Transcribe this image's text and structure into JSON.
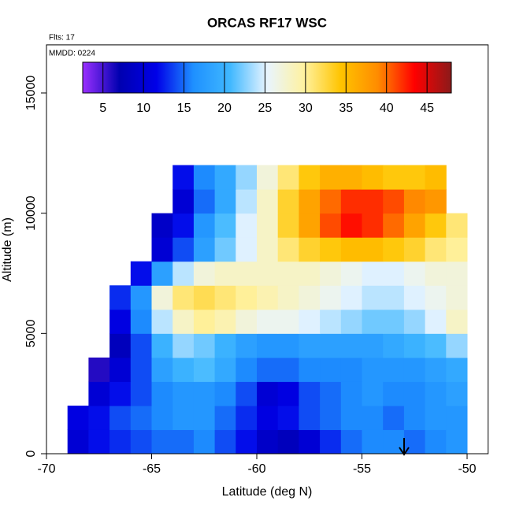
{
  "chart_data": {
    "type": "heatmap",
    "title": "ORCAS RF17 WSC",
    "subtitle": "Flts: 17",
    "annotation": "MMDD: 0224",
    "xlabel": "Latitude (deg N)",
    "ylabel": "Altitude (m)",
    "xlim": [
      -70,
      -49
    ],
    "ylim": [
      0,
      17000
    ],
    "xticks": [
      -70,
      -65,
      -60,
      -55,
      -50
    ],
    "yticks": [
      0,
      5000,
      10000,
      15000
    ],
    "x": [
      -68.5,
      -67.5,
      -66.5,
      -65.5,
      -64.5,
      -63.5,
      -62.5,
      -61.5,
      -60.5,
      -59.5,
      -58.5,
      -57.5,
      -56.5,
      -55.5,
      -54.5,
      -53.5,
      -52.5,
      -51.5,
      -50.5
    ],
    "y": [
      500,
      1500,
      2500,
      3500,
      4500,
      5500,
      6500,
      7500,
      8500,
      9500,
      10500,
      11500
    ],
    "z": [
      [
        10,
        12,
        13,
        14,
        15,
        15,
        16,
        14,
        12,
        9,
        8,
        10,
        13,
        15,
        16,
        16,
        15,
        16,
        17
      ],
      [
        11,
        12,
        14,
        15,
        16,
        17,
        17,
        15,
        13,
        11,
        12,
        14,
        15,
        16,
        16,
        15,
        16,
        17,
        17
      ],
      [
        null,
        10,
        12,
        14,
        16,
        17,
        17,
        16,
        14,
        10,
        11,
        14,
        15,
        16,
        17,
        16,
        16,
        17,
        18
      ],
      [
        null,
        6,
        10,
        14,
        18,
        20,
        21,
        19,
        16,
        15,
        15,
        16,
        16,
        16,
        17,
        17,
        17,
        18,
        19
      ],
      [
        null,
        null,
        8,
        14,
        20,
        23,
        22,
        20,
        18,
        17,
        17,
        18,
        18,
        18,
        18,
        19,
        20,
        21,
        23
      ],
      [
        null,
        null,
        11,
        16,
        24,
        28,
        30,
        29,
        27,
        26,
        26,
        25,
        24,
        23,
        22,
        22,
        23,
        25,
        28
      ],
      [
        null,
        null,
        13,
        17,
        27,
        31,
        32,
        31,
        30,
        29,
        28,
        27,
        26,
        25,
        24,
        24,
        25,
        26,
        27
      ],
      [
        null,
        null,
        null,
        12,
        18,
        24,
        27,
        28,
        28,
        28,
        28,
        28,
        27,
        26,
        25,
        25,
        26,
        27,
        27
      ],
      [
        null,
        null,
        null,
        null,
        10,
        14,
        18,
        22,
        25,
        28,
        31,
        33,
        34,
        35,
        35,
        34,
        33,
        31,
        30
      ],
      [
        null,
        null,
        null,
        null,
        9,
        12,
        17,
        21,
        25,
        28,
        33,
        37,
        41,
        43,
        42,
        40,
        37,
        34,
        31
      ],
      [
        null,
        null,
        null,
        null,
        null,
        10,
        15,
        19,
        24,
        28,
        33,
        37,
        40,
        42,
        42,
        41,
        39,
        38,
        null
      ],
      [
        null,
        null,
        null,
        null,
        null,
        12,
        16,
        19,
        23,
        27,
        31,
        34,
        36,
        36,
        35,
        34,
        34,
        35,
        null
      ]
    ],
    "colorbar_lim": [
      2.5,
      48
    ],
    "colorbar_ticks": [
      5,
      10,
      15,
      20,
      25,
      30,
      35,
      40,
      45
    ],
    "colors": [
      "#9b30ff",
      "#0000b0",
      "#0000e8",
      "#1e90ff",
      "#40b8ff",
      "#e8f4ff",
      "#fff2a0",
      "#ffc400",
      "#ff8c00",
      "#ff0000",
      "#8b1a1a"
    ]
  }
}
